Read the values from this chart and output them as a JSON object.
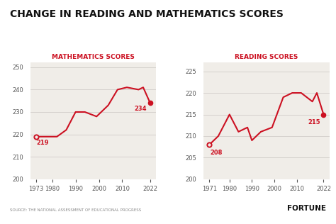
{
  "title": "CHANGE IN READING AND MATHEMATICS SCORES",
  "title_fontsize": 10,
  "title_fontweight": "bold",
  "background_color": "#ffffff",
  "plot_bg_color": "#f0ede8",
  "line_color": "#cc1122",
  "math": {
    "label": "MATHEMATICS SCORES",
    "years": [
      1973,
      1978,
      1982,
      1986,
      1990,
      1994,
      1999,
      2004,
      2008,
      2012,
      2017,
      2019,
      2022
    ],
    "scores": [
      219,
      219,
      219,
      222,
      230,
      230,
      228,
      233,
      240,
      241,
      240,
      241,
      234
    ],
    "ylim": [
      200,
      252
    ],
    "yticks": [
      200,
      210,
      220,
      230,
      240,
      250
    ],
    "xticks": [
      1973,
      1980,
      1990,
      2000,
      2010,
      2022
    ],
    "start_label": "219",
    "end_label": "234"
  },
  "reading": {
    "label": "READING SCORES",
    "years": [
      1971,
      1975,
      1980,
      1984,
      1988,
      1990,
      1992,
      1994,
      1999,
      2004,
      2008,
      2012,
      2017,
      2019,
      2022
    ],
    "scores": [
      208,
      210,
      215,
      211,
      212,
      209,
      210,
      211,
      212,
      219,
      220,
      220,
      218,
      220,
      215
    ],
    "ylim": [
      200,
      227
    ],
    "yticks": [
      200,
      205,
      210,
      215,
      220,
      225
    ],
    "xticks": [
      1971,
      1980,
      1990,
      2000,
      2010,
      2022
    ],
    "start_label": "208",
    "end_label": "215"
  },
  "source_text": "SOURCE: THE NATIONAL ASSESSMENT OF EDUCATIONAL PROGRESS",
  "fortune_text": "FORTUNE",
  "grid_color": "#d0ccc8",
  "tick_color": "#555555",
  "text_color": "#111111"
}
